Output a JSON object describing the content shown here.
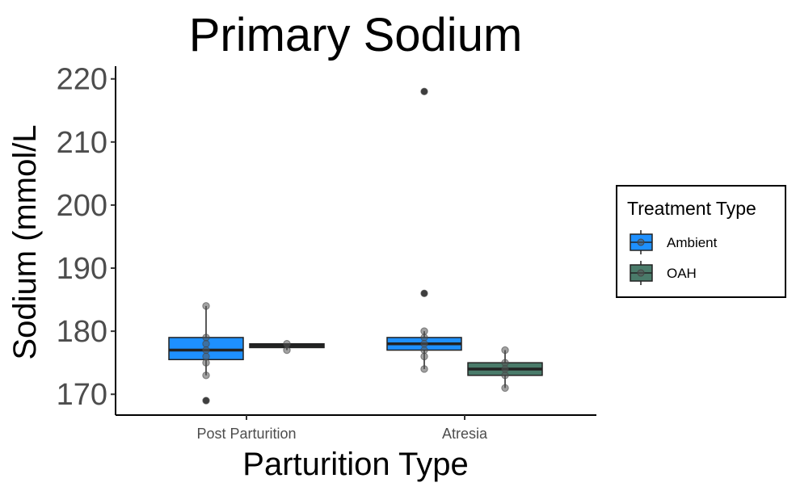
{
  "chart_data": {
    "type": "box",
    "title": "Primary Sodium",
    "xlabel": "Parturition Type",
    "ylabel": "Sodium (mmol/L",
    "categories": [
      "Post Parturition",
      "Atresia"
    ],
    "ylim": [
      166.7,
      221.5
    ],
    "yticks": [
      170,
      180,
      190,
      200,
      210,
      220
    ],
    "grid": false,
    "legend": {
      "title": "Treatment Type",
      "position": "right",
      "entries": [
        "Ambient",
        "OAH"
      ]
    },
    "series": [
      {
        "name": "Ambient",
        "color": "#1e90ff",
        "boxes": [
          {
            "category": "Post Parturition",
            "q1": 175.5,
            "median": 177.0,
            "q3": 179.0,
            "whisker_low": 173.0,
            "whisker_high": 184.0,
            "outliers": [
              169.0
            ]
          },
          {
            "category": "Atresia",
            "q1": 177.0,
            "median": 178.0,
            "q3": 179.0,
            "whisker_low": 174.0,
            "whisker_high": 180.0,
            "outliers": [
              186.0,
              218.0
            ]
          }
        ],
        "points": [
          {
            "category": "Post Parturition",
            "values": [
              184,
              179,
              178,
              177,
              176,
              175,
              173,
              169
            ]
          },
          {
            "category": "Atresia",
            "values": [
              218,
              186,
              180,
              179,
              178,
              177,
              176,
              174
            ]
          }
        ]
      },
      {
        "name": "OAH",
        "color": "#4a7b6a",
        "boxes": [
          {
            "category": "Post Parturition",
            "q1": 177.4,
            "median": 177.7,
            "q3": 178.0,
            "whisker_low": 177.0,
            "whisker_high": 178.0,
            "outliers": []
          },
          {
            "category": "Atresia",
            "q1": 173.0,
            "median": 174.0,
            "q3": 175.0,
            "whisker_low": 171.0,
            "whisker_high": 177.0,
            "outliers": []
          }
        ],
        "points": [
          {
            "category": "Post Parturition",
            "values": [
              178,
              177
            ]
          },
          {
            "category": "Atresia",
            "values": [
              177,
              175,
              174,
              173,
              171
            ]
          }
        ]
      }
    ]
  }
}
